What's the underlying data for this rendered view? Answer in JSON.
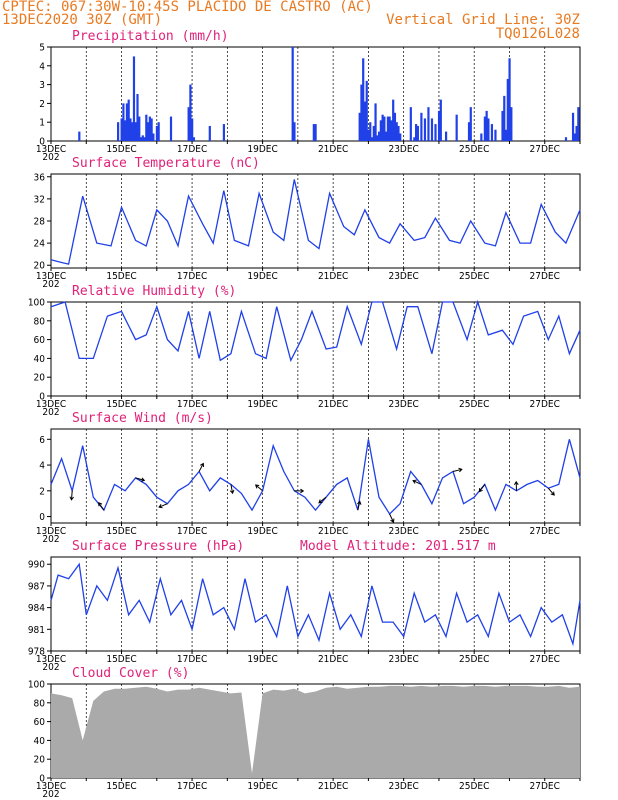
{
  "header": {
    "line1_left": "CPTEC:  067:30W-10:45S  PLACIDO DE CASTRO (AC)",
    "line2_left": "13DEC2020 30Z (GMT)",
    "line2_right": "Vertical Grid Line: 30Z",
    "line3_right": "TQ0126L028"
  },
  "colors": {
    "header": "#e87a22",
    "title": "#e0227a",
    "series": "#2040e8",
    "cloud": "#aaaaaa"
  },
  "x_dates": [
    "13DEC",
    "15DEC",
    "17DEC",
    "19DEC",
    "21DEC",
    "23DEC",
    "25DEC",
    "27DEC"
  ],
  "x_extra": "202",
  "chart_data": [
    {
      "type": "bar",
      "title": "Precipitation (mm/h)",
      "xlim": [
        13,
        28
      ],
      "ylim": [
        0,
        5
      ],
      "yticks": [
        0,
        1,
        2,
        3,
        4,
        5
      ],
      "x": [
        13.8,
        14.9,
        15.0,
        15.05,
        15.1,
        15.15,
        15.2,
        15.25,
        15.3,
        15.35,
        15.4,
        15.45,
        15.5,
        15.55,
        15.6,
        15.65,
        15.7,
        15.75,
        15.8,
        15.85,
        15.9,
        16.0,
        16.05,
        16.4,
        16.9,
        16.95,
        17.0,
        17.05,
        17.5,
        17.9,
        19.85,
        19.9,
        20.45,
        20.5,
        21.75,
        21.8,
        21.85,
        21.9,
        21.95,
        22.0,
        22.05,
        22.1,
        22.15,
        22.2,
        22.25,
        22.3,
        22.35,
        22.4,
        22.45,
        22.5,
        22.55,
        22.6,
        22.65,
        22.7,
        22.75,
        22.8,
        22.85,
        22.9,
        23.2,
        23.3,
        23.35,
        23.4,
        23.5,
        23.6,
        23.7,
        23.8,
        23.9,
        24.0,
        24.05,
        24.2,
        24.5,
        24.85,
        24.9,
        25.2,
        25.3,
        25.35,
        25.4,
        25.5,
        25.6,
        25.8,
        25.85,
        25.9,
        25.95,
        26.0,
        26.05,
        27.6,
        27.8,
        27.85,
        27.9,
        27.95
      ],
      "values": [
        0.5,
        1.0,
        1.2,
        2.0,
        1.1,
        2.0,
        2.2,
        1.2,
        1.0,
        4.5,
        1.0,
        2.5,
        1.3,
        0.2,
        0.3,
        0.2,
        1.4,
        1.0,
        1.3,
        1.2,
        0.4,
        0.8,
        1.0,
        1.3,
        1.8,
        3.0,
        1.2,
        0.2,
        0.8,
        0.9,
        5.0,
        1.0,
        0.9,
        0.9,
        1.5,
        3.0,
        4.4,
        2.1,
        3.2,
        0.6,
        1.0,
        0.2,
        0.8,
        2.0,
        0.3,
        0.5,
        1.1,
        1.4,
        1.3,
        0.5,
        1.3,
        1.3,
        1.1,
        2.2,
        1.5,
        1.0,
        0.8,
        0.4,
        1.8,
        0.2,
        0.9,
        0.8,
        1.5,
        1.2,
        1.8,
        1.2,
        0.9,
        1.6,
        2.2,
        0.5,
        1.4,
        1.0,
        1.8,
        0.4,
        1.3,
        1.6,
        1.2,
        0.9,
        0.6,
        1.6,
        2.4,
        0.6,
        3.3,
        4.4,
        1.8,
        0.2,
        1.5,
        0.4,
        0.8,
        1.8
      ]
    },
    {
      "type": "line",
      "title": "Surface Temperature (nC)",
      "xlim": [
        13,
        28
      ],
      "ylim": [
        19.5,
        36.5
      ],
      "yticks": [
        20,
        24,
        28,
        32,
        36
      ],
      "x": [
        13.0,
        13.3,
        13.5,
        13.9,
        14.3,
        14.7,
        15.0,
        15.4,
        15.7,
        16.0,
        16.3,
        16.6,
        16.9,
        17.3,
        17.6,
        17.9,
        18.2,
        18.6,
        18.9,
        19.3,
        19.6,
        19.9,
        20.3,
        20.6,
        20.9,
        21.3,
        21.6,
        21.9,
        22.3,
        22.6,
        22.9,
        23.3,
        23.6,
        23.9,
        24.3,
        24.6,
        24.9,
        25.3,
        25.6,
        25.9,
        26.3,
        26.6,
        26.9,
        27.3,
        27.6,
        28.0
      ],
      "values": [
        21.0,
        20.5,
        20.2,
        32.5,
        24.0,
        23.5,
        30.5,
        24.5,
        23.5,
        30.0,
        28.0,
        23.5,
        32.5,
        27.5,
        24.0,
        33.5,
        24.5,
        23.5,
        33.0,
        26.0,
        24.5,
        35.5,
        24.5,
        23.0,
        33.0,
        27.0,
        25.5,
        30.0,
        25.0,
        24.0,
        27.5,
        24.5,
        25.0,
        28.5,
        24.5,
        24.0,
        28.0,
        24.0,
        23.5,
        29.5,
        24.0,
        24.0,
        31.0,
        26.0,
        24.0,
        30.0
      ]
    },
    {
      "type": "line",
      "title": "Relative Humidity (%)",
      "xlim": [
        13,
        28
      ],
      "ylim": [
        0,
        100
      ],
      "yticks": [
        0,
        20,
        40,
        60,
        80,
        100
      ],
      "x": [
        13.0,
        13.4,
        13.8,
        14.2,
        14.6,
        15.0,
        15.4,
        15.7,
        16.0,
        16.3,
        16.6,
        16.9,
        17.2,
        17.5,
        17.8,
        18.1,
        18.4,
        18.8,
        19.1,
        19.4,
        19.8,
        20.1,
        20.4,
        20.8,
        21.1,
        21.4,
        21.8,
        22.1,
        22.4,
        22.8,
        23.1,
        23.4,
        23.8,
        24.1,
        24.4,
        24.8,
        25.1,
        25.4,
        25.8,
        26.1,
        26.4,
        26.8,
        27.1,
        27.4,
        27.7,
        28.0
      ],
      "values": [
        95,
        100,
        40,
        40,
        85,
        90,
        60,
        65,
        95,
        60,
        48,
        90,
        40,
        90,
        38,
        45,
        90,
        45,
        40,
        95,
        38,
        60,
        90,
        50,
        52,
        95,
        55,
        100,
        100,
        50,
        95,
        95,
        45,
        100,
        100,
        60,
        100,
        65,
        70,
        55,
        85,
        90,
        60,
        85,
        45,
        70
      ]
    },
    {
      "type": "line",
      "title": "Surface Wind (m/s)",
      "xlim": [
        13,
        28
      ],
      "ylim": [
        -0.5,
        6.8
      ],
      "yticks": [
        0,
        2,
        4,
        6
      ],
      "x": [
        13.0,
        13.3,
        13.6,
        13.9,
        14.2,
        14.5,
        14.8,
        15.1,
        15.4,
        15.7,
        16.0,
        16.3,
        16.6,
        16.9,
        17.2,
        17.5,
        17.8,
        18.1,
        18.4,
        18.7,
        19.0,
        19.3,
        19.6,
        19.9,
        20.2,
        20.5,
        20.8,
        21.1,
        21.4,
        21.7,
        22.0,
        22.3,
        22.6,
        22.9,
        23.2,
        23.5,
        23.8,
        24.1,
        24.4,
        24.7,
        25.0,
        25.3,
        25.6,
        25.9,
        26.2,
        26.5,
        26.8,
        27.1,
        27.4,
        27.7,
        28.0
      ],
      "values": [
        2.5,
        4.5,
        2.0,
        5.5,
        1.5,
        0.5,
        2.5,
        2.0,
        3.0,
        2.5,
        1.5,
        1.0,
        2.0,
        2.5,
        3.5,
        2.0,
        3.0,
        2.5,
        1.8,
        0.5,
        2.0,
        5.5,
        3.5,
        2.0,
        1.5,
        0.5,
        1.5,
        2.5,
        3.0,
        0.5,
        6.0,
        1.5,
        0.2,
        1.0,
        3.5,
        2.5,
        1.0,
        3.0,
        3.5,
        1.0,
        1.5,
        2.5,
        0.5,
        2.5,
        2.0,
        2.5,
        2.8,
        2.2,
        2.5,
        6.0,
        3.0
      ]
    },
    {
      "type": "line",
      "title": "Surface Pressure (hPa)",
      "subtitle": "Model Altitude: 201.517  m",
      "xlim": [
        13,
        28
      ],
      "ylim": [
        978,
        991
      ],
      "yticks": [
        978,
        981,
        984,
        987,
        990
      ],
      "x": [
        13.0,
        13.2,
        13.5,
        13.8,
        14.0,
        14.3,
        14.6,
        14.9,
        15.2,
        15.5,
        15.8,
        16.1,
        16.4,
        16.7,
        17.0,
        17.3,
        17.6,
        17.9,
        18.2,
        18.5,
        18.8,
        19.1,
        19.4,
        19.7,
        20.0,
        20.3,
        20.6,
        20.9,
        21.2,
        21.5,
        21.8,
        22.1,
        22.4,
        22.7,
        23.0,
        23.3,
        23.6,
        23.9,
        24.2,
        24.5,
        24.8,
        25.1,
        25.4,
        25.7,
        26.0,
        26.3,
        26.6,
        26.9,
        27.2,
        27.5,
        27.8,
        28.0
      ],
      "values": [
        985,
        988.5,
        988,
        990,
        983,
        987,
        985,
        989.5,
        983,
        985,
        982,
        988,
        983,
        985,
        981,
        988,
        983,
        984,
        981,
        988,
        982,
        983,
        980,
        987,
        980,
        983,
        979.5,
        986,
        981,
        983,
        980,
        987,
        982,
        982,
        980,
        986,
        982,
        983,
        980,
        986,
        982,
        983,
        980,
        986,
        982,
        983,
        980,
        984,
        982,
        983,
        979,
        985
      ]
    },
    {
      "type": "area",
      "title": "Cloud Cover (%)",
      "xlim": [
        13,
        28
      ],
      "ylim": [
        0,
        100
      ],
      "yticks": [
        0,
        20,
        40,
        60,
        80,
        100
      ],
      "x": [
        13.0,
        13.3,
        13.6,
        13.9,
        14.2,
        14.5,
        14.8,
        15.1,
        15.4,
        15.7,
        16.0,
        16.3,
        16.6,
        16.9,
        17.2,
        17.5,
        17.8,
        18.1,
        18.4,
        18.7,
        19.0,
        19.3,
        19.6,
        19.9,
        20.2,
        20.5,
        20.8,
        21.1,
        21.4,
        21.7,
        22.0,
        22.3,
        22.6,
        22.9,
        23.2,
        23.5,
        23.8,
        24.1,
        24.4,
        24.7,
        25.0,
        25.3,
        25.6,
        25.9,
        26.2,
        26.5,
        26.8,
        27.1,
        27.4,
        27.7,
        28.0
      ],
      "values": [
        90,
        88,
        85,
        40,
        82,
        92,
        95,
        95,
        96,
        97,
        95,
        92,
        94,
        94,
        96,
        94,
        92,
        90,
        91,
        5,
        90,
        94,
        93,
        95,
        90,
        92,
        96,
        97,
        95,
        96,
        97,
        97,
        98,
        98,
        97,
        98,
        97,
        98,
        98,
        97,
        98,
        98,
        97,
        98,
        98,
        98,
        97,
        97,
        98,
        96,
        97
      ]
    }
  ]
}
